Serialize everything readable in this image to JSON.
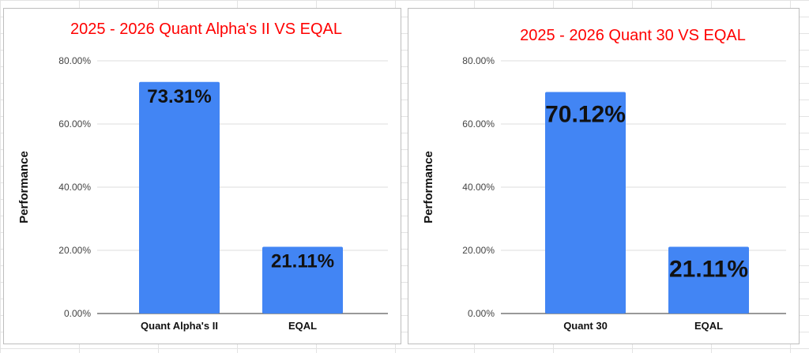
{
  "chart_data": [
    {
      "type": "bar",
      "title": "2025 - 2026 Quant Alpha's II VS EQAL",
      "ylabel": "Performance",
      "xlabel": "",
      "categories": [
        "Quant Alpha's II",
        "EQAL"
      ],
      "values": [
        73.31,
        21.11
      ],
      "data_labels": [
        "73.31%",
        "21.11%"
      ],
      "yticks": [
        "0.00%",
        "20.00%",
        "40.00%",
        "60.00%",
        "80.00%"
      ],
      "ytick_values": [
        0,
        20,
        40,
        60,
        80
      ],
      "ylim": [
        0,
        80
      ],
      "grid": true,
      "legend": "none",
      "bar_color": "#4285f4",
      "title_color": "#ff0000"
    },
    {
      "type": "bar",
      "title": "2025 - 2026 Quant 30 VS EQAL",
      "ylabel": "Performance",
      "xlabel": "",
      "categories": [
        "Quant 30",
        "EQAL"
      ],
      "values": [
        70.12,
        21.11
      ],
      "data_labels": [
        "70.12%",
        "21.11%"
      ],
      "yticks": [
        "0.00%",
        "20.00%",
        "40.00%",
        "60.00%",
        "80.00%"
      ],
      "ytick_values": [
        0,
        20,
        40,
        60,
        80
      ],
      "ylim": [
        0,
        80
      ],
      "grid": true,
      "legend": "none",
      "bar_color": "#4285f4",
      "title_color": "#ff0000"
    }
  ]
}
